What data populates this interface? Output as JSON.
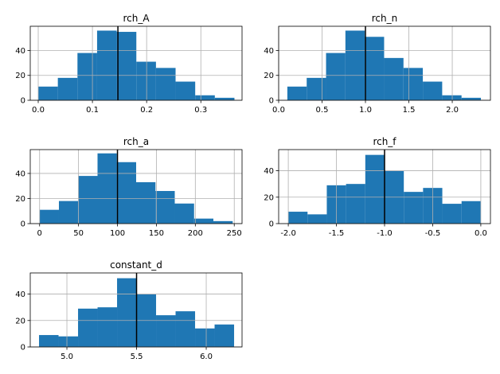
{
  "chart_data": [
    {
      "type": "histogram",
      "title": "rch_A",
      "color": "#1f77b4",
      "grid": true,
      "bins": [
        0,
        0.0362,
        0.0724,
        0.1086,
        0.1448,
        0.181,
        0.2172,
        0.2534,
        0.2896,
        0.3258,
        0.362
      ],
      "values": [
        11,
        18,
        38,
        56,
        55,
        31,
        26,
        15,
        4,
        2
      ],
      "vline": 0.147,
      "xlim": [
        -0.0147,
        0.376
      ],
      "xticks": [
        {
          "value": 0,
          "label": "0.0"
        },
        0.1,
        0.2,
        0.3
      ],
      "ylim": [
        0,
        59.5
      ],
      "yticks": [
        0,
        20,
        40
      ]
    },
    {
      "type": "histogram",
      "title": "rch_n",
      "color": "#1f77b4",
      "grid": true,
      "bins": [
        0.1,
        0.323,
        0.546,
        0.769,
        0.992,
        1.215,
        1.438,
        1.661,
        1.884,
        2.107,
        2.33
      ],
      "values": [
        11,
        18,
        38,
        56,
        51,
        34,
        26,
        15,
        4,
        2
      ],
      "vline": 1.0,
      "xlim": [
        0.0,
        2.44
      ],
      "xticks": [
        {
          "value": 0,
          "label": "0.0"
        },
        0.5,
        {
          "value": 1,
          "label": "1.0"
        },
        1.5,
        {
          "value": 2,
          "label": "2.0"
        }
      ],
      "ylim": [
        0,
        59.5
      ],
      "yticks": [
        0,
        20,
        40
      ]
    },
    {
      "type": "histogram",
      "title": "rch_a",
      "color": "#1f77b4",
      "grid": true,
      "bins": [
        0,
        24.8,
        49.6,
        74.4,
        99.2,
        124,
        148.8,
        173.6,
        198.4,
        223.2,
        248
      ],
      "values": [
        11,
        18,
        38,
        56,
        49,
        33,
        26,
        16,
        4,
        2
      ],
      "vline": 100,
      "xlim": [
        -12,
        260
      ],
      "xticks": [
        0,
        50,
        100,
        150,
        200,
        250
      ],
      "ylim": [
        0,
        59
      ],
      "yticks": [
        0,
        20,
        40
      ]
    },
    {
      "type": "histogram",
      "title": "rch_f",
      "color": "#1f77b4",
      "grid": true,
      "bins": [
        -2.0,
        -1.8,
        -1.6,
        -1.4,
        -1.2,
        -1.0,
        -0.8,
        -0.6,
        -0.4,
        -0.2,
        0.0
      ],
      "values": [
        9,
        7,
        29,
        30,
        52,
        40,
        24,
        27,
        15,
        17
      ],
      "vline": -1.0,
      "xlim": [
        -2.1,
        0.1
      ],
      "xticks": [
        {
          "value": -2,
          "label": "-2.0"
        },
        -1.5,
        {
          "value": -1,
          "label": "-1.0"
        },
        -0.5,
        {
          "value": 0,
          "label": "0.0"
        }
      ],
      "ylim": [
        0,
        56
      ],
      "yticks": [
        0,
        20,
        40
      ]
    },
    {
      "type": "histogram",
      "title": "constant_d",
      "color": "#1f77b4",
      "grid": true,
      "bins": [
        4.8,
        4.94,
        5.08,
        5.22,
        5.36,
        5.5,
        5.64,
        5.78,
        5.92,
        6.06,
        6.2
      ],
      "values": [
        9,
        8,
        29,
        30,
        52,
        40,
        24,
        27,
        14,
        17
      ],
      "vline": 5.5,
      "xlim": [
        4.737,
        6.257
      ],
      "xticks": [
        {
          "value": 5,
          "label": "5.0"
        },
        5.5,
        {
          "value": 6,
          "label": "6.0"
        }
      ],
      "ylim": [
        0,
        56
      ],
      "yticks": [
        0,
        20,
        40
      ]
    }
  ]
}
